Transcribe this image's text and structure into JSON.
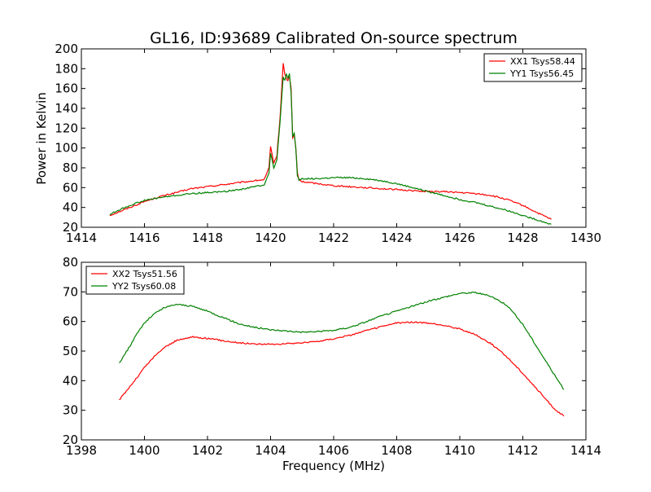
{
  "figure": {
    "title": "GL16, ID:93689 Calibrated On-source spectrum",
    "ylabel": "Power in Kelvin",
    "xlabel": "Frequency (MHz)"
  },
  "chart_data": [
    {
      "type": "line",
      "title": "GL16, ID:93689 Calibrated On-source spectrum",
      "xlabel": "",
      "ylabel": "Power in Kelvin",
      "xlim": [
        1414,
        1430
      ],
      "ylim": [
        20,
        200
      ],
      "xticks": [
        1414,
        1416,
        1418,
        1420,
        1422,
        1424,
        1426,
        1428,
        1430
      ],
      "yticks": [
        20,
        40,
        60,
        80,
        100,
        120,
        140,
        160,
        180,
        200
      ],
      "legend_position": "top-right",
      "grid": false,
      "series": [
        {
          "name": "XX1 Tsys58.44",
          "color": "#ff0000",
          "x": [
            1414.9,
            1415.3,
            1415.7,
            1416.0,
            1416.5,
            1417.0,
            1417.5,
            1418.0,
            1418.5,
            1419.0,
            1419.5,
            1419.8,
            1419.95,
            1420.0,
            1420.1,
            1420.2,
            1420.3,
            1420.4,
            1420.45,
            1420.5,
            1420.55,
            1420.6,
            1420.65,
            1420.7,
            1420.75,
            1420.8,
            1420.85,
            1420.9,
            1421.0,
            1421.5,
            1422.0,
            1422.5,
            1423.0,
            1423.5,
            1424.0,
            1424.5,
            1425.0,
            1425.5,
            1426.0,
            1426.5,
            1427.0,
            1427.5,
            1428.0,
            1428.5,
            1428.9
          ],
          "y": [
            32,
            37,
            42,
            46,
            51,
            55,
            59,
            61,
            63,
            65,
            67,
            68,
            80,
            101,
            85,
            92,
            130,
            185,
            175,
            170,
            168,
            172,
            160,
            110,
            113,
            100,
            75,
            68,
            66,
            64,
            62,
            61,
            60,
            59,
            58,
            57,
            56,
            56,
            55,
            54,
            52,
            48,
            42,
            34,
            28
          ]
        },
        {
          "name": "YY1 Tsys56.45",
          "color": "#008000",
          "x": [
            1414.9,
            1415.3,
            1415.7,
            1416.0,
            1416.5,
            1417.0,
            1417.5,
            1418.0,
            1418.5,
            1419.0,
            1419.5,
            1419.8,
            1419.95,
            1420.0,
            1420.1,
            1420.2,
            1420.3,
            1420.4,
            1420.45,
            1420.5,
            1420.55,
            1420.6,
            1420.65,
            1420.7,
            1420.75,
            1420.8,
            1420.85,
            1420.9,
            1421.0,
            1421.5,
            1422.0,
            1422.5,
            1423.0,
            1423.5,
            1424.0,
            1424.5,
            1425.0,
            1425.5,
            1426.0,
            1426.5,
            1427.0,
            1427.5,
            1428.0,
            1428.5,
            1428.9
          ],
          "y": [
            33,
            39,
            44,
            47,
            50,
            52,
            54,
            55,
            56,
            58,
            61,
            63,
            75,
            95,
            80,
            88,
            125,
            172,
            168,
            174,
            170,
            175,
            155,
            112,
            115,
            100,
            72,
            68,
            69,
            69,
            70,
            70,
            69,
            67,
            64,
            60,
            56,
            52,
            48,
            45,
            41,
            37,
            32,
            27,
            23
          ]
        }
      ]
    },
    {
      "type": "line",
      "title": "",
      "xlabel": "Frequency (MHz)",
      "ylabel": "",
      "xlim": [
        1398,
        1414
      ],
      "ylim": [
        20,
        80
      ],
      "xticks": [
        1398,
        1400,
        1402,
        1404,
        1406,
        1408,
        1410,
        1412,
        1414
      ],
      "yticks": [
        20,
        30,
        40,
        50,
        60,
        70,
        80
      ],
      "legend_position": "top-left",
      "grid": false,
      "series": [
        {
          "name": "XX2 Tsys51.56",
          "color": "#ff0000",
          "x": [
            1399.2,
            1399.5,
            1399.8,
            1400.0,
            1400.3,
            1400.6,
            1401.0,
            1401.5,
            1402.0,
            1402.5,
            1403.0,
            1403.5,
            1404.0,
            1404.5,
            1405.0,
            1405.5,
            1406.0,
            1406.5,
            1407.0,
            1407.5,
            1408.0,
            1408.5,
            1409.0,
            1409.5,
            1410.0,
            1410.5,
            1411.0,
            1411.5,
            1412.0,
            1412.5,
            1413.0,
            1413.3
          ],
          "y": [
            33.5,
            37.5,
            41.5,
            44.5,
            48,
            51,
            53.5,
            54.8,
            54.3,
            53.5,
            52.8,
            52.4,
            52.3,
            52.5,
            52.8,
            53.3,
            54.2,
            55.3,
            56.8,
            58.2,
            59.5,
            59.8,
            59.4,
            58.7,
            57.5,
            55.5,
            52.5,
            48,
            42.5,
            36.5,
            30.5,
            28
          ]
        },
        {
          "name": "YY2 Tsys60.08",
          "color": "#008000",
          "x": [
            1399.2,
            1399.5,
            1399.8,
            1400.0,
            1400.3,
            1400.6,
            1401.0,
            1401.5,
            1402.0,
            1402.5,
            1403.0,
            1403.5,
            1404.0,
            1404.5,
            1405.0,
            1405.5,
            1406.0,
            1406.5,
            1407.0,
            1407.5,
            1408.0,
            1408.5,
            1409.0,
            1409.5,
            1410.0,
            1410.5,
            1411.0,
            1411.5,
            1412.0,
            1412.5,
            1413.0,
            1413.3
          ],
          "y": [
            46,
            51,
            56.5,
            59.5,
            62.5,
            64.5,
            65.8,
            65.2,
            63.5,
            61.3,
            59.2,
            58,
            57.2,
            56.8,
            56.4,
            56.6,
            57,
            58,
            59.8,
            61.8,
            63.5,
            65.2,
            66.8,
            68.2,
            69.5,
            69.8,
            68.5,
            65.5,
            59,
            50.5,
            42,
            37
          ]
        }
      ]
    }
  ]
}
